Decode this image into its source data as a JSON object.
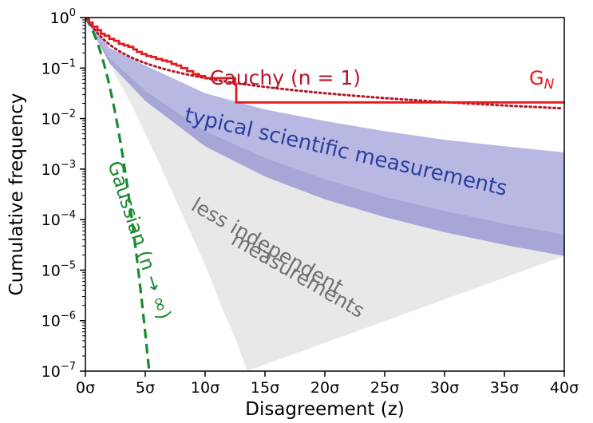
{
  "chart_data": {
    "type": "line",
    "xlabel": "Disagreement (z)",
    "ylabel": "Cumulative frequency",
    "xlim": [
      0,
      40
    ],
    "ylim_log10": [
      -7,
      0
    ],
    "yscale": "log",
    "grid": false,
    "x_ticks": [
      "0σ",
      "5σ",
      "10σ",
      "15σ",
      "20σ",
      "25σ",
      "30σ",
      "35σ",
      "40σ"
    ],
    "y_ticks": [
      {
        "base": "10",
        "exp": "0"
      },
      {
        "base": "10",
        "exp": "−1"
      },
      {
        "base": "10",
        "exp": "−2"
      },
      {
        "base": "10",
        "exp": "−3"
      },
      {
        "base": "10",
        "exp": "−4"
      },
      {
        "base": "10",
        "exp": "−5"
      },
      {
        "base": "10",
        "exp": "−6"
      },
      {
        "base": "10",
        "exp": "−7"
      }
    ],
    "annotations": {
      "cauchy": "Cauchy (n = 1)",
      "gn": "G",
      "gn_sub": "N",
      "typical": "typical scientific measurements",
      "less_line1": "less independent",
      "less_line2": "measurements",
      "gaussian": "Gaussian (n → ∞)"
    },
    "colors": {
      "gn": "#e31a1c",
      "cauchy": "#b2182b",
      "gaussian": "#1a8a2e",
      "typical_band": "#b9b8e3",
      "typical_band_inner": "#a7a6d6",
      "typical_text": "#2b3f9e",
      "less_band": "#e8e8e8",
      "less_text": "#707070"
    },
    "series": [
      {
        "name": "G_N",
        "style": "step",
        "points": [
          [
            0,
            0
          ],
          [
            0.3,
            -0.1
          ],
          [
            0.6,
            -0.18
          ],
          [
            1.0,
            -0.25
          ],
          [
            1.3,
            -0.32
          ],
          [
            1.6,
            -0.36
          ],
          [
            2.0,
            -0.42
          ],
          [
            2.4,
            -0.46
          ],
          [
            2.8,
            -0.52
          ],
          [
            3.2,
            -0.55
          ],
          [
            3.6,
            -0.58
          ],
          [
            4.0,
            -0.63
          ],
          [
            4.3,
            -0.68
          ],
          [
            4.7,
            -0.72
          ],
          [
            5.1,
            -0.76
          ],
          [
            5.5,
            -0.78
          ],
          [
            5.9,
            -0.82
          ],
          [
            6.4,
            -0.85
          ],
          [
            6.8,
            -0.87
          ],
          [
            7.2,
            -0.92
          ],
          [
            7.6,
            -0.95
          ],
          [
            8.0,
            -1.0
          ],
          [
            8.5,
            -1.06
          ],
          [
            9.0,
            -1.12
          ],
          [
            9.5,
            -1.16
          ],
          [
            10.0,
            -1.2
          ],
          [
            12.5,
            -1.2
          ],
          [
            12.5,
            -1.33
          ],
          [
            12.6,
            -1.68
          ],
          [
            40,
            -1.68
          ]
        ]
      },
      {
        "name": "Cauchy (n = 1)",
        "style": "dotted",
        "formula": "1 - (2/pi)*atan(z)"
      },
      {
        "name": "Gaussian (n → ∞)",
        "style": "dashed",
        "formula": "erfc(z/sqrt(2))"
      }
    ],
    "bands": [
      {
        "name": "typical scientific measurements",
        "upper_log10_at": [
          [
            0,
            0
          ],
          [
            2,
            -0.6
          ],
          [
            5,
            -0.95
          ],
          [
            10,
            -1.5
          ],
          [
            15,
            -1.82
          ],
          [
            20,
            -2.05
          ],
          [
            25,
            -2.25
          ],
          [
            30,
            -2.42
          ],
          [
            35,
            -2.55
          ],
          [
            40,
            -2.67
          ]
        ],
        "lower_log10_at": [
          [
            0,
            0
          ],
          [
            2,
            -0.9
          ],
          [
            5,
            -1.65
          ],
          [
            10,
            -2.55
          ],
          [
            15,
            -3.15
          ],
          [
            20,
            -3.6
          ],
          [
            25,
            -3.95
          ],
          [
            30,
            -4.25
          ],
          [
            35,
            -4.5
          ],
          [
            40,
            -4.72
          ]
        ],
        "inner_log10_at": [
          [
            0,
            0
          ],
          [
            2,
            -0.8
          ],
          [
            5,
            -1.45
          ],
          [
            10,
            -2.25
          ],
          [
            15,
            -2.78
          ],
          [
            20,
            -3.2
          ],
          [
            25,
            -3.55
          ],
          [
            30,
            -3.83
          ],
          [
            35,
            -4.08
          ],
          [
            40,
            -4.3
          ]
        ]
      },
      {
        "name": "less independent measurements",
        "upper_log10_at": [
          [
            0,
            0
          ],
          [
            2,
            -0.9
          ],
          [
            5,
            -1.65
          ],
          [
            10,
            -2.55
          ],
          [
            15,
            -3.15
          ],
          [
            20,
            -3.6
          ],
          [
            25,
            -3.95
          ],
          [
            30,
            -4.25
          ],
          [
            35,
            -4.5
          ],
          [
            40,
            -4.72
          ]
        ],
        "lower_log10_at": [
          [
            0,
            0
          ],
          [
            2,
            -0.9
          ],
          [
            4,
            -1.8
          ],
          [
            6,
            -2.8
          ],
          [
            8,
            -3.85
          ],
          [
            10,
            -4.9
          ],
          [
            11.5,
            -5.8
          ],
          [
            12.6,
            -6.4
          ],
          [
            13.5,
            -7
          ]
        ]
      }
    ]
  }
}
